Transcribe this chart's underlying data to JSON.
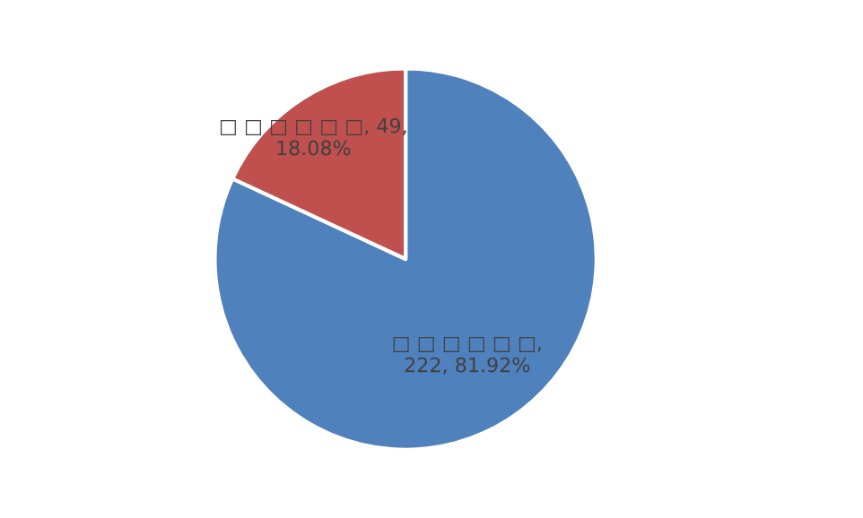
{
  "chart_data": {
    "type": "pie",
    "categories": [
      "□ □ □ □ □ □",
      "□ □ □ □ □ □"
    ],
    "values": [
      222,
      49
    ],
    "colors": [
      "#4f81bd",
      "#c0504d"
    ],
    "value_labels": [
      ",\n222, 81.92%",
      ", 49,\n18.08%"
    ],
    "legend": false
  }
}
